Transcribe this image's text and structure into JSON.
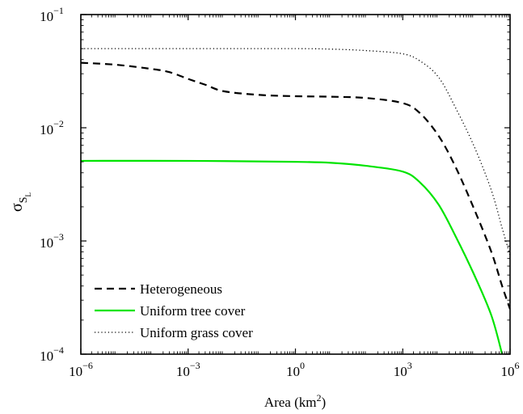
{
  "chart_data": {
    "type": "line",
    "xlabel_base": "Area (km",
    "xlabel_sup": "2",
    "xlabel_tail": ")",
    "ylabel_main": "σ",
    "ylabel_sub": "S",
    "ylabel_subsub": "L",
    "x_scale": "log",
    "y_scale": "log",
    "xlim": [
      1e-06,
      1000000.0
    ],
    "ylim": [
      0.0001,
      0.1
    ],
    "grid": false,
    "legend_position": "bottom-left",
    "x_ticks": [
      {
        "value": 1e-06,
        "base": "10",
        "exp": "−6"
      },
      {
        "value": 0.001,
        "base": "10",
        "exp": "−3"
      },
      {
        "value": 1,
        "base": "10",
        "exp": "0"
      },
      {
        "value": 1000.0,
        "base": "10",
        "exp": "3"
      },
      {
        "value": 1000000.0,
        "base": "10",
        "exp": "6"
      }
    ],
    "y_ticks": [
      {
        "value": 0.0001,
        "base": "10",
        "exp": "−4"
      },
      {
        "value": 0.001,
        "base": "10",
        "exp": "−3"
      },
      {
        "value": 0.01,
        "base": "10",
        "exp": "−2"
      },
      {
        "value": 0.1,
        "base": "10",
        "exp": "−1"
      }
    ],
    "series": [
      {
        "name": "Heterogeneous",
        "color": "#000000",
        "style": "dashed",
        "points": [
          [
            1e-06,
            0.0375
          ],
          [
            1e-05,
            0.036
          ],
          [
            0.0001,
            0.033
          ],
          [
            0.0003,
            0.031
          ],
          [
            0.001,
            0.027
          ],
          [
            0.003,
            0.024
          ],
          [
            0.01,
            0.021
          ],
          [
            0.1,
            0.0195
          ],
          [
            1,
            0.019
          ],
          [
            10.0,
            0.0188
          ],
          [
            100.0,
            0.0183
          ],
          [
            1000.0,
            0.0165
          ],
          [
            3000.0,
            0.0135
          ],
          [
            10000.0,
            0.0085
          ],
          [
            30000.0,
            0.0045
          ],
          [
            100000.0,
            0.0019
          ],
          [
            300000.0,
            0.0008
          ],
          [
            600000.0,
            0.0004
          ],
          [
            1000000.0,
            0.00025
          ]
        ]
      },
      {
        "name": "Uniform tree cover",
        "color": "#00e400",
        "style": "solid",
        "points": [
          [
            1e-06,
            0.0051
          ],
          [
            0.001,
            0.0051
          ],
          [
            1,
            0.005
          ],
          [
            10.0,
            0.0049
          ],
          [
            100.0,
            0.0046
          ],
          [
            1000.0,
            0.0041
          ],
          [
            3000.0,
            0.0033
          ],
          [
            10000.0,
            0.0021
          ],
          [
            30000.0,
            0.0011
          ],
          [
            100000.0,
            0.0005
          ],
          [
            300000.0,
            0.00022
          ],
          [
            600000.0,
            0.0001
          ]
        ]
      },
      {
        "name": "Uniform grass cover",
        "color": "#000000",
        "style": "dotted",
        "points": [
          [
            1e-06,
            0.05
          ],
          [
            0.001,
            0.05
          ],
          [
            1,
            0.05
          ],
          [
            10.0,
            0.0495
          ],
          [
            100.0,
            0.048
          ],
          [
            1000.0,
            0.045
          ],
          [
            3000.0,
            0.039
          ],
          [
            10000.0,
            0.028
          ],
          [
            30000.0,
            0.015
          ],
          [
            100000.0,
            0.0068
          ],
          [
            300000.0,
            0.0028
          ],
          [
            600000.0,
            0.0013
          ],
          [
            1000000.0,
            0.00075
          ]
        ]
      }
    ]
  }
}
